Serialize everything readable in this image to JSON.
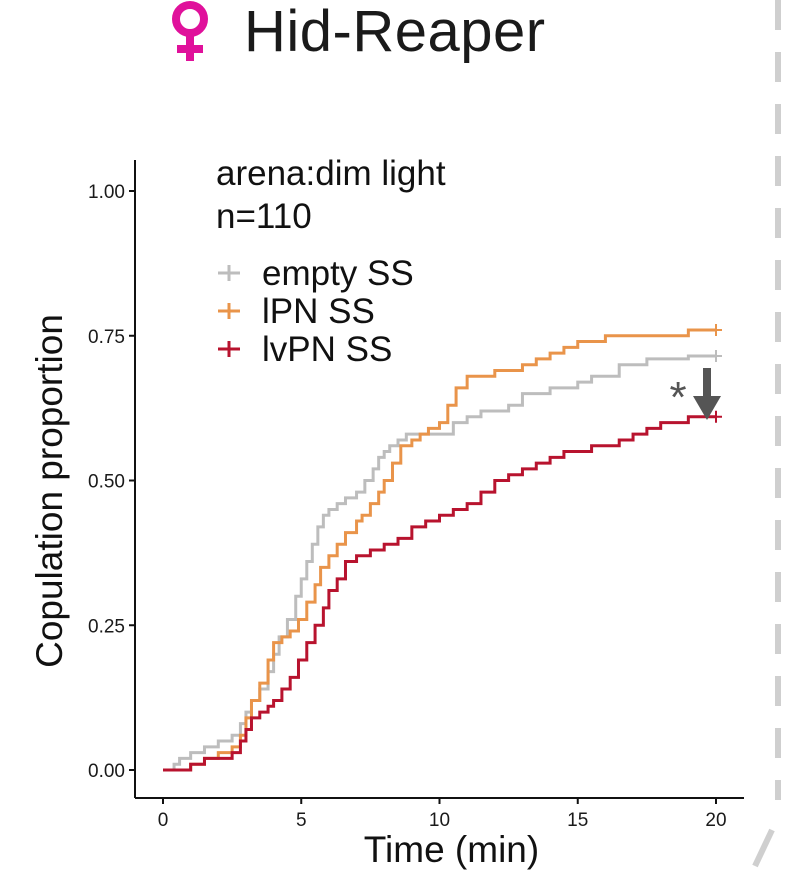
{
  "header": {
    "symbol_color": "#e0119b",
    "title": "Hid-Reaper"
  },
  "chart_data": {
    "type": "line",
    "step": true,
    "annotation_lines": [
      "arena:dim light",
      "n=110"
    ],
    "xlabel": "Time (min)",
    "ylabel": "Copulation proportion",
    "xlim": [
      0,
      20
    ],
    "ylim": [
      0,
      1
    ],
    "xticks": [
      "0",
      "5",
      "10",
      "15",
      "20"
    ],
    "yticks": [
      "0.00",
      "0.25",
      "0.50",
      "0.75",
      "1.00"
    ],
    "grid": false,
    "legend_position": "top-left",
    "significance_marker": "*",
    "series": [
      {
        "name": "empty SS",
        "color": "#bdbdbd",
        "x": [
          0,
          0.4,
          0.6,
          1.0,
          1.5,
          2.0,
          2.5,
          2.8,
          3.0,
          3.2,
          3.5,
          3.8,
          4.0,
          4.2,
          4.5,
          4.8,
          5.0,
          5.2,
          5.4,
          5.6,
          5.8,
          6.0,
          6.3,
          6.6,
          7.0,
          7.3,
          7.6,
          7.8,
          8.0,
          8.2,
          8.5,
          8.8,
          9.0,
          9.3,
          9.7,
          10.0,
          10.5,
          11.0,
          11.5,
          12.0,
          12.5,
          13.0,
          13.5,
          14.0,
          14.5,
          15.0,
          15.5,
          16.0,
          16.5,
          17.0,
          17.5,
          18.0,
          18.5,
          19.0,
          20.0
        ],
        "y": [
          0,
          0.01,
          0.02,
          0.03,
          0.04,
          0.05,
          0.06,
          0.08,
          0.1,
          0.12,
          0.14,
          0.17,
          0.2,
          0.23,
          0.26,
          0.3,
          0.33,
          0.36,
          0.39,
          0.42,
          0.44,
          0.45,
          0.46,
          0.47,
          0.48,
          0.5,
          0.52,
          0.54,
          0.55,
          0.56,
          0.57,
          0.58,
          0.58,
          0.58,
          0.58,
          0.58,
          0.6,
          0.61,
          0.62,
          0.62,
          0.63,
          0.65,
          0.65,
          0.66,
          0.66,
          0.67,
          0.68,
          0.68,
          0.7,
          0.7,
          0.71,
          0.71,
          0.71,
          0.715,
          0.715
        ]
      },
      {
        "name": "lPN SS",
        "color": "#e9944a",
        "x": [
          0,
          1.0,
          1.5,
          2.0,
          2.5,
          2.8,
          3.0,
          3.2,
          3.5,
          3.8,
          4.0,
          4.3,
          4.6,
          4.9,
          5.2,
          5.5,
          5.7,
          6.0,
          6.3,
          6.6,
          7.0,
          7.2,
          7.5,
          7.8,
          8.0,
          8.3,
          8.6,
          9.0,
          9.3,
          9.6,
          10.0,
          10.3,
          10.6,
          11.0,
          11.5,
          12.0,
          12.5,
          13.0,
          13.5,
          14.0,
          14.5,
          15.0,
          15.5,
          16.0,
          17.0,
          18.0,
          19.0,
          20.0
        ],
        "y": [
          0,
          0.01,
          0.02,
          0.03,
          0.04,
          0.06,
          0.09,
          0.12,
          0.15,
          0.19,
          0.22,
          0.23,
          0.24,
          0.26,
          0.29,
          0.32,
          0.35,
          0.37,
          0.39,
          0.41,
          0.43,
          0.44,
          0.46,
          0.48,
          0.5,
          0.53,
          0.56,
          0.57,
          0.58,
          0.59,
          0.6,
          0.63,
          0.66,
          0.68,
          0.68,
          0.69,
          0.69,
          0.7,
          0.71,
          0.72,
          0.73,
          0.74,
          0.74,
          0.75,
          0.75,
          0.75,
          0.76,
          0.76
        ]
      },
      {
        "name": "lvPN SS",
        "color": "#b8132e",
        "x": [
          0,
          1.0,
          1.5,
          2.0,
          2.5,
          2.8,
          3.0,
          3.2,
          3.5,
          3.8,
          4.0,
          4.3,
          4.6,
          4.9,
          5.2,
          5.5,
          5.8,
          6.0,
          6.3,
          6.6,
          7.0,
          7.5,
          8.0,
          8.5,
          9.0,
          9.5,
          10.0,
          10.5,
          11.0,
          11.5,
          12.0,
          12.5,
          13.0,
          13.5,
          14.0,
          14.5,
          15.0,
          15.5,
          16.0,
          16.5,
          17.0,
          17.5,
          18.0,
          18.5,
          19.0,
          19.5,
          20.0
        ],
        "y": [
          0,
          0.01,
          0.02,
          0.02,
          0.03,
          0.05,
          0.07,
          0.09,
          0.1,
          0.11,
          0.12,
          0.14,
          0.16,
          0.19,
          0.22,
          0.25,
          0.28,
          0.31,
          0.33,
          0.36,
          0.37,
          0.38,
          0.39,
          0.4,
          0.42,
          0.43,
          0.44,
          0.45,
          0.46,
          0.48,
          0.5,
          0.51,
          0.52,
          0.53,
          0.54,
          0.55,
          0.55,
          0.56,
          0.56,
          0.57,
          0.58,
          0.59,
          0.6,
          0.6,
          0.61,
          0.61,
          0.61
        ]
      }
    ]
  }
}
